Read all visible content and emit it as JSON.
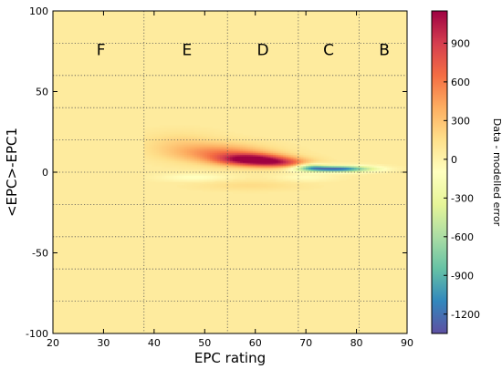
{
  "chart_data": {
    "type": "heatmap",
    "title": "",
    "xlabel": "EPC rating",
    "ylabel": "<EPC>-EPC1",
    "xlim": [
      20,
      90
    ],
    "ylim": [
      -100,
      100
    ],
    "xticks": [
      20,
      30,
      40,
      50,
      60,
      70,
      80,
      90
    ],
    "yticks": [
      -100,
      -50,
      0,
      50,
      100
    ],
    "grid": "dotted",
    "grid_x": [
      38,
      54.5,
      68.5,
      80.5
    ],
    "grid_y": [
      -80,
      -60,
      -40,
      -20,
      0,
      20,
      40,
      60,
      80
    ],
    "band_labels": [
      {
        "label": "F",
        "x": 29.5,
        "y": 76
      },
      {
        "label": "E",
        "x": 46.5,
        "y": 76
      },
      {
        "label": "D",
        "x": 61.5,
        "y": 76
      },
      {
        "label": "C",
        "x": 74.5,
        "y": 76
      },
      {
        "label": "B",
        "x": 85.5,
        "y": 76
      }
    ],
    "colorbar": {
      "label": "Data - modelled error",
      "range": [
        -1350,
        1150
      ],
      "ticks": [
        -1200,
        -900,
        -600,
        -300,
        0,
        300,
        600,
        900
      ],
      "colormap": "Spectral_r",
      "colors": [
        "#5e4fa2",
        "#3288bd",
        "#66c2a5",
        "#abdda4",
        "#e6f598",
        "#ffffbf",
        "#fee08b",
        "#fdae61",
        "#f46d43",
        "#d53e4f",
        "#9e0142"
      ]
    },
    "background_value": 60,
    "hotspots": [
      {
        "x": 59,
        "y": 8,
        "sx": 4.5,
        "sy": 2.6,
        "value": 1100
      },
      {
        "x": 53,
        "y": 12,
        "sx": 6.5,
        "sy": 4.0,
        "value": 520
      },
      {
        "x": 45,
        "y": 18,
        "sx": 5.5,
        "sy": 5.0,
        "value": 200
      },
      {
        "x": 65,
        "y": 6,
        "sx": 4.0,
        "sy": 2.2,
        "value": 700
      },
      {
        "x": 76,
        "y": 2.2,
        "sx": 4.8,
        "sy": 1.3,
        "value": -1250
      },
      {
        "x": 71,
        "y": 3.5,
        "sx": 2.0,
        "sy": 1.5,
        "value": -500
      },
      {
        "x": 59,
        "y": -8,
        "sx": 7.0,
        "sy": 2.2,
        "value": 170
      },
      {
        "x": 48,
        "y": -3,
        "sx": 5.0,
        "sy": 1.8,
        "value": -110
      },
      {
        "x": 70,
        "y": -3,
        "sx": 4.0,
        "sy": 1.8,
        "value": -80
      }
    ]
  }
}
